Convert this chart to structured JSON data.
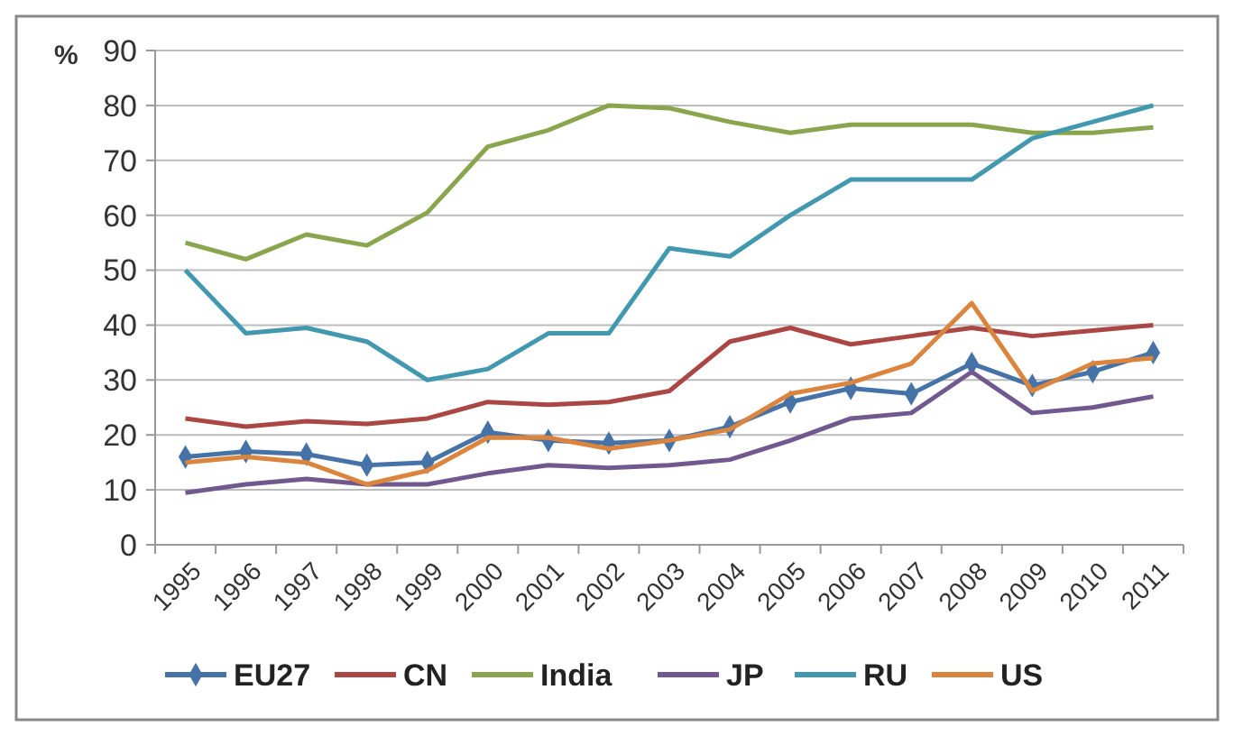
{
  "chart_data": {
    "type": "line",
    "ylabel": "%",
    "categories": [
      "1995",
      "1996",
      "1997",
      "1998",
      "1999",
      "2000",
      "2001",
      "2002",
      "2003",
      "2004",
      "2005",
      "2006",
      "2007",
      "2008",
      "2009",
      "2010",
      "2011"
    ],
    "series": [
      {
        "name": "EU27",
        "color": "#4572a7",
        "marker": "diamond",
        "values": [
          16,
          17,
          16.5,
          14.5,
          15,
          20.5,
          19,
          18.5,
          19,
          21.5,
          26,
          28.5,
          27.5,
          33,
          29,
          31.5,
          35
        ]
      },
      {
        "name": "CN",
        "color": "#aa4643",
        "values": [
          23,
          21.5,
          22.5,
          22,
          23,
          26,
          25.5,
          26,
          28,
          37,
          39.5,
          36.5,
          38,
          39.5,
          38,
          39,
          40
        ]
      },
      {
        "name": "India",
        "color": "#89a54e",
        "values": [
          55,
          52,
          56.5,
          54.5,
          60.5,
          72.5,
          75.5,
          80,
          79.5,
          77,
          75,
          76.5,
          76.5,
          76.5,
          75,
          75,
          76
        ]
      },
      {
        "name": "JP",
        "color": "#71588f",
        "values": [
          9.5,
          11,
          12,
          11,
          11,
          13,
          14.5,
          14,
          14.5,
          15.5,
          19,
          23,
          24,
          31.5,
          24,
          25,
          27
        ]
      },
      {
        "name": "RU",
        "color": "#4198af",
        "values": [
          50,
          38.5,
          39.5,
          37,
          30,
          32,
          38.5,
          38.5,
          54,
          52.5,
          60,
          66.5,
          66.5,
          66.5,
          74,
          77,
          80
        ]
      },
      {
        "name": "US",
        "color": "#db843d",
        "values": [
          15,
          16,
          15,
          11,
          13.5,
          19.5,
          19.5,
          17.5,
          19,
          21,
          27.5,
          29.5,
          33,
          44,
          28,
          33,
          34
        ]
      }
    ],
    "ylim": [
      0,
      90
    ],
    "yticks": [
      0,
      10,
      20,
      30,
      40,
      50,
      60,
      70,
      80,
      90
    ],
    "grid": "y",
    "legend": "bottom",
    "marker": "none"
  }
}
